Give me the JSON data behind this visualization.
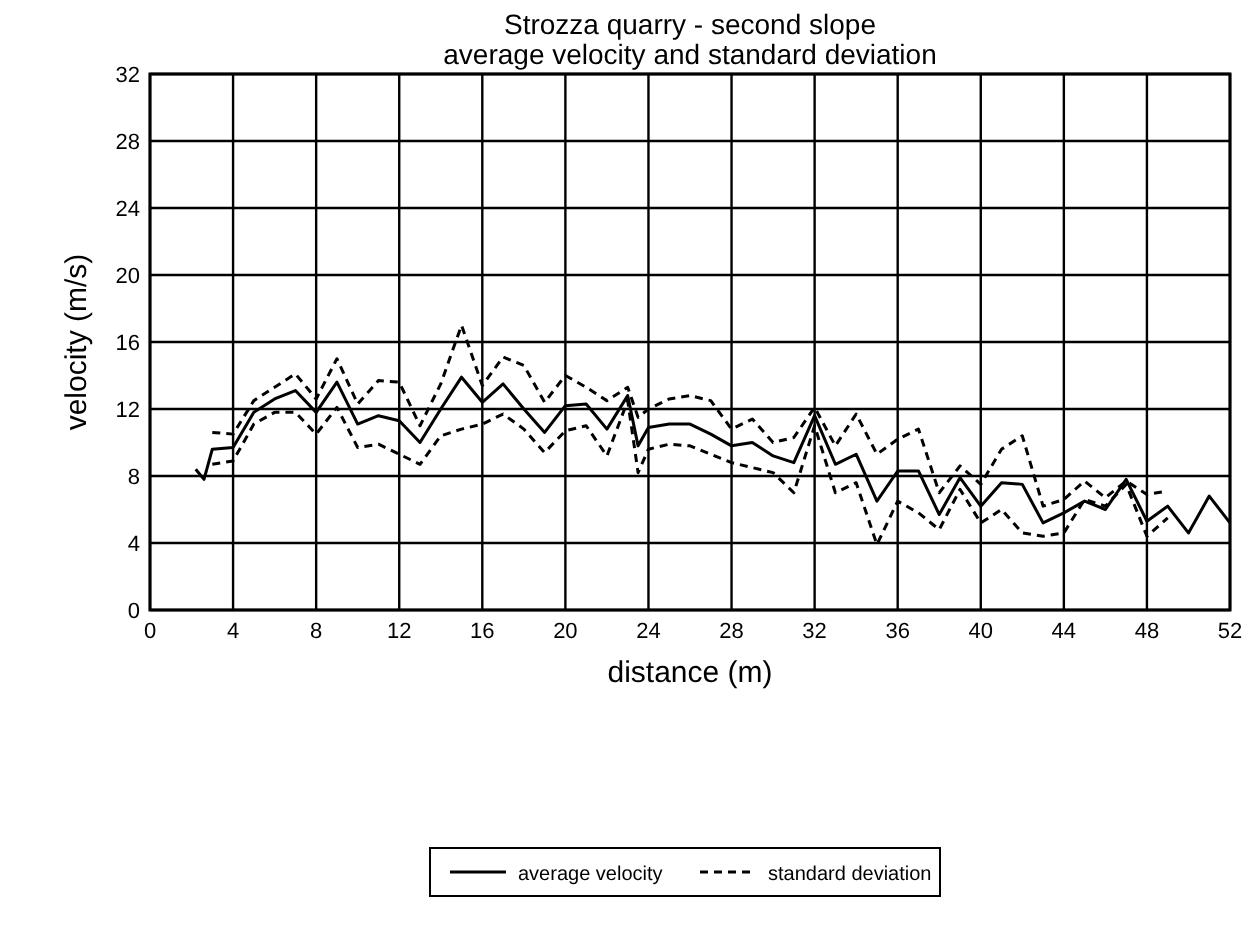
{
  "chart_data": {
    "type": "line",
    "title": "Strozza quarry - second slope\naverage velocity and standard deviation",
    "xlabel": "distance (m)",
    "ylabel": "velocity (m/s)",
    "xlim": [
      0,
      52
    ],
    "ylim": [
      0,
      32
    ],
    "xticks": [
      0,
      4,
      8,
      12,
      16,
      20,
      24,
      28,
      32,
      36,
      40,
      44,
      48,
      52
    ],
    "yticks": [
      0,
      4,
      8,
      12,
      16,
      20,
      24,
      28,
      32
    ],
    "grid": true,
    "legend": "bottom",
    "marker": "none",
    "series": [
      {
        "name": "average velocity",
        "color": "#000000",
        "line_style": "solid",
        "x": [
          2.2,
          2.6,
          3,
          4,
          5,
          6,
          7,
          8,
          9,
          10,
          11,
          12,
          13,
          14,
          15,
          16,
          17,
          18,
          19,
          20,
          21,
          22,
          23,
          23.5,
          24,
          25,
          26,
          27,
          28,
          29,
          30,
          31,
          32,
          33,
          34,
          35,
          36,
          37,
          38,
          39,
          40,
          41,
          42,
          43,
          44,
          45,
          46,
          47,
          48,
          49,
          50,
          51,
          52
        ],
        "values": [
          8.4,
          7.8,
          9.6,
          9.7,
          11.8,
          12.6,
          13.1,
          11.8,
          13.6,
          11.1,
          11.6,
          11.3,
          10.0,
          12.0,
          13.9,
          12.4,
          13.5,
          12.0,
          10.6,
          12.2,
          12.3,
          10.8,
          12.8,
          9.8,
          10.9,
          11.1,
          11.1,
          10.5,
          9.8,
          10.0,
          9.2,
          8.8,
          11.6,
          8.7,
          9.3,
          6.5,
          8.3,
          8.3,
          5.7,
          7.9,
          6.2,
          7.6,
          7.5,
          5.2,
          5.8,
          6.5,
          6.0,
          7.8,
          5.3,
          6.2,
          4.6,
          6.8,
          5.2
        ]
      },
      {
        "name": "standard deviation",
        "color": "#000000",
        "line_style": "dashed",
        "x": [
          3,
          4,
          5,
          6,
          7,
          8,
          9,
          10,
          11,
          12,
          13,
          14,
          15,
          16,
          17,
          18,
          19,
          20,
          21,
          22,
          23,
          23.5,
          24,
          25,
          26,
          27,
          28,
          29,
          30,
          31,
          32,
          33,
          34,
          35,
          36,
          37,
          38,
          39,
          40,
          41,
          42,
          43,
          44,
          45,
          46,
          47,
          48,
          49
        ],
        "values": [
          10.6,
          10.5,
          12.5,
          13.3,
          14.1,
          12.6,
          15.0,
          12.3,
          13.7,
          13.6,
          11.0,
          13.5,
          17.0,
          13.4,
          15.1,
          14.6,
          12.4,
          14.0,
          13.3,
          12.5,
          13.3,
          11.5,
          12.0,
          12.6,
          12.8,
          12.5,
          10.8,
          11.4,
          10.0,
          10.3,
          12.1,
          9.8,
          11.7,
          9.3,
          10.2,
          10.8,
          7.0,
          8.6,
          7.5,
          9.6,
          10.4,
          6.2,
          6.6,
          7.7,
          6.7,
          7.7,
          6.9,
          7.1
        ]
      },
      {
        "color": "#000000",
        "line_style": "dashed",
        "x": [
          3,
          4,
          5,
          6,
          7,
          8,
          9,
          10,
          11,
          12,
          13,
          14,
          15,
          16,
          17,
          18,
          19,
          20,
          21,
          22,
          23,
          23.5,
          24,
          25,
          26,
          27,
          28,
          29,
          30,
          31,
          32,
          33,
          34,
          35,
          36,
          37,
          38,
          39,
          40,
          41,
          42,
          43,
          44,
          45,
          46,
          47,
          48,
          49
        ],
        "values": [
          8.7,
          8.9,
          11.1,
          11.8,
          11.8,
          10.5,
          12.1,
          9.7,
          9.9,
          9.3,
          8.7,
          10.4,
          10.8,
          11.1,
          11.7,
          10.8,
          9.4,
          10.7,
          11.0,
          9.2,
          12.5,
          8.2,
          9.6,
          9.9,
          9.8,
          9.3,
          8.8,
          8.5,
          8.2,
          7.0,
          11.0,
          7.0,
          7.6,
          3.9,
          6.5,
          5.8,
          4.8,
          7.2,
          5.2,
          6.0,
          4.6,
          4.4,
          4.6,
          6.6,
          6.2,
          7.5,
          4.4,
          5.5
        ]
      }
    ]
  }
}
